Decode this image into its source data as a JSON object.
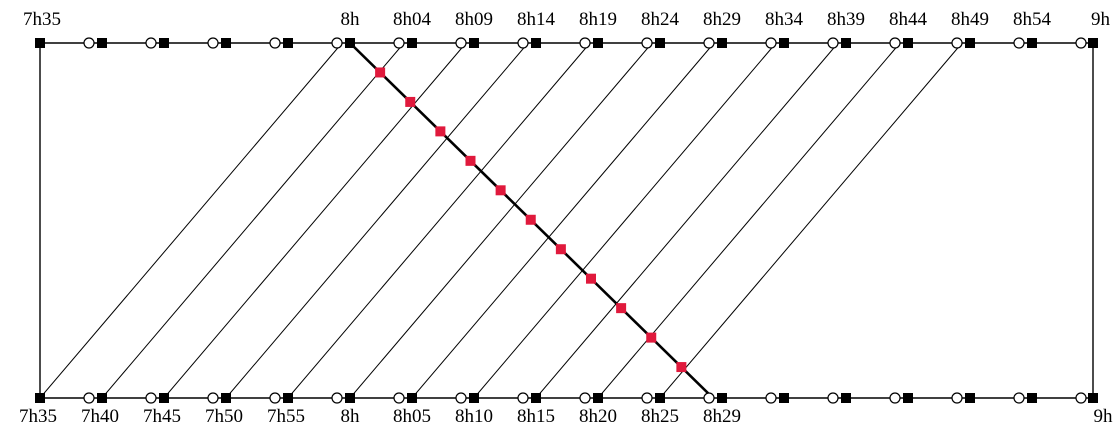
{
  "top_labels": [
    "7h35",
    "8h",
    "8h04",
    "8h09",
    "8h14",
    "8h19",
    "8h24",
    "8h29",
    "8h34",
    "8h39",
    "8h44",
    "8h49",
    "8h54",
    "9h"
  ],
  "bottom_labels": [
    "7h35",
    "7h40",
    "7h45",
    "7h50",
    "7h55",
    "8h",
    "8h05",
    "8h10",
    "8h15",
    "8h20",
    "8h25",
    "8h29",
    "9h"
  ],
  "colors": {
    "line": "#000000",
    "crossing_marker": "#e0193c",
    "square_marker": "#000000",
    "circle_marker": "#ffffff"
  }
}
